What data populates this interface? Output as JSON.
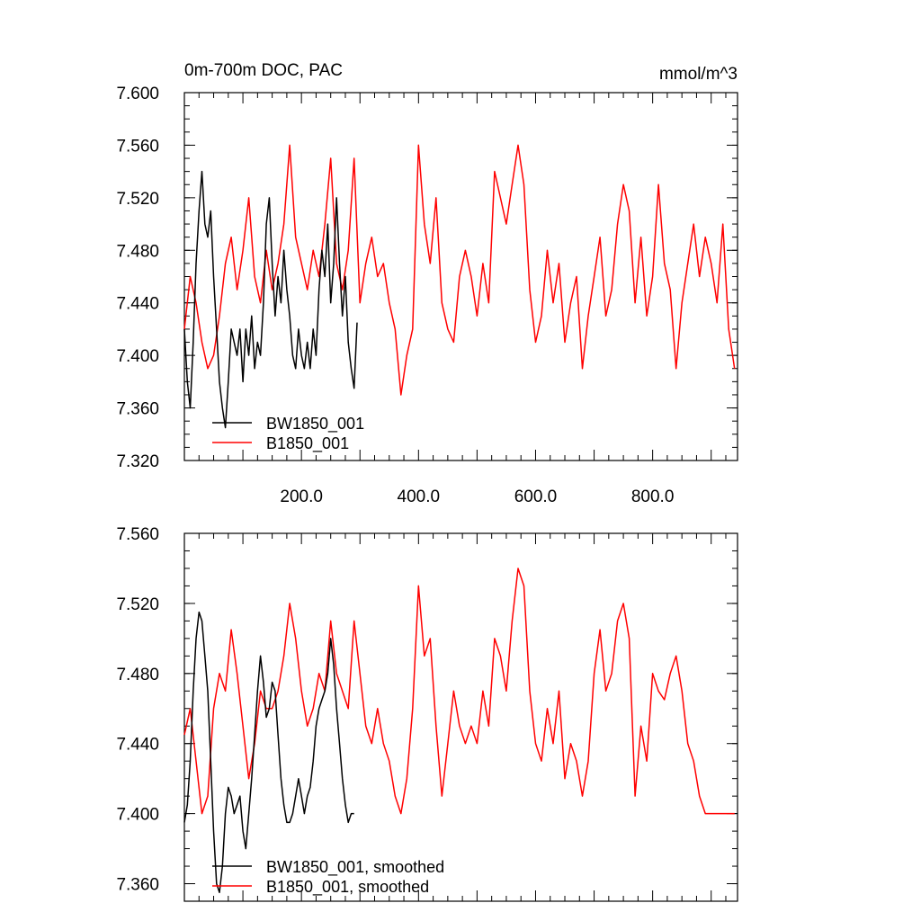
{
  "chart_data": [
    {
      "type": "line",
      "title": "0m-700m DOC, PAC",
      "units": "mmol/m^3",
      "xlim": [
        0,
        945
      ],
      "ylim": [
        7.32,
        7.6
      ],
      "xticks": [
        200,
        400,
        600,
        800
      ],
      "xtick_labels": [
        "200.0",
        "400.0",
        "600.0",
        "800.0"
      ],
      "yticks": [
        7.32,
        7.36,
        7.4,
        7.44,
        7.48,
        7.52,
        7.56,
        7.6
      ],
      "ytick_labels": [
        "7.320",
        "7.360",
        "7.400",
        "7.440",
        "7.480",
        "7.520",
        "7.560",
        "7.600"
      ],
      "grid": false,
      "legend_position": "bottom-left",
      "series": [
        {
          "name": "BW1850_001",
          "color": "#000000",
          "x": [
            0,
            5,
            10,
            15,
            20,
            25,
            30,
            35,
            40,
            45,
            50,
            55,
            60,
            65,
            70,
            75,
            80,
            85,
            90,
            95,
            100,
            105,
            110,
            115,
            120,
            125,
            130,
            135,
            140,
            145,
            150,
            155,
            160,
            165,
            170,
            175,
            180,
            185,
            190,
            195,
            200,
            205,
            210,
            215,
            220,
            225,
            230,
            235,
            240,
            245,
            250,
            255,
            260,
            265,
            270,
            275,
            280,
            285,
            290,
            295
          ],
          "values": [
            7.42,
            7.38,
            7.36,
            7.41,
            7.47,
            7.51,
            7.54,
            7.5,
            7.49,
            7.51,
            7.46,
            7.42,
            7.38,
            7.36,
            7.345,
            7.38,
            7.42,
            7.41,
            7.4,
            7.42,
            7.38,
            7.42,
            7.4,
            7.43,
            7.39,
            7.41,
            7.4,
            7.44,
            7.5,
            7.52,
            7.47,
            7.43,
            7.46,
            7.44,
            7.48,
            7.45,
            7.43,
            7.4,
            7.39,
            7.42,
            7.4,
            7.39,
            7.41,
            7.39,
            7.42,
            7.4,
            7.45,
            7.48,
            7.46,
            7.5,
            7.44,
            7.47,
            7.52,
            7.47,
            7.43,
            7.46,
            7.41,
            7.39,
            7.375,
            7.425
          ]
        },
        {
          "name": "B1850_001",
          "color": "#ff0000",
          "x": [
            0,
            10,
            20,
            30,
            40,
            50,
            60,
            70,
            80,
            90,
            100,
            110,
            120,
            130,
            140,
            150,
            160,
            170,
            180,
            190,
            200,
            210,
            220,
            230,
            240,
            250,
            260,
            270,
            280,
            290,
            300,
            310,
            320,
            330,
            340,
            350,
            360,
            370,
            380,
            390,
            400,
            410,
            420,
            430,
            440,
            450,
            460,
            470,
            480,
            490,
            500,
            510,
            520,
            530,
            540,
            550,
            560,
            570,
            580,
            590,
            600,
            610,
            620,
            630,
            640,
            650,
            660,
            670,
            680,
            690,
            700,
            710,
            720,
            730,
            740,
            750,
            760,
            770,
            780,
            790,
            800,
            810,
            820,
            830,
            840,
            850,
            860,
            870,
            880,
            890,
            900,
            910,
            920,
            930,
            940
          ],
          "values": [
            7.42,
            7.46,
            7.44,
            7.41,
            7.39,
            7.4,
            7.43,
            7.47,
            7.49,
            7.45,
            7.48,
            7.52,
            7.46,
            7.44,
            7.48,
            7.45,
            7.47,
            7.5,
            7.56,
            7.49,
            7.47,
            7.45,
            7.48,
            7.46,
            7.5,
            7.55,
            7.47,
            7.45,
            7.48,
            7.55,
            7.44,
            7.47,
            7.49,
            7.46,
            7.47,
            7.44,
            7.42,
            7.37,
            7.4,
            7.42,
            7.56,
            7.5,
            7.47,
            7.52,
            7.44,
            7.42,
            7.41,
            7.46,
            7.48,
            7.46,
            7.43,
            7.47,
            7.44,
            7.54,
            7.52,
            7.5,
            7.53,
            7.56,
            7.53,
            7.45,
            7.41,
            7.43,
            7.48,
            7.44,
            7.47,
            7.41,
            7.44,
            7.46,
            7.39,
            7.43,
            7.46,
            7.49,
            7.43,
            7.45,
            7.5,
            7.53,
            7.51,
            7.44,
            7.49,
            7.43,
            7.46,
            7.53,
            7.47,
            7.45,
            7.39,
            7.44,
            7.47,
            7.5,
            7.46,
            7.49,
            7.47,
            7.44,
            7.5,
            7.42,
            7.39
          ]
        }
      ]
    },
    {
      "type": "line",
      "xlim": [
        0,
        945
      ],
      "ylim": [
        7.35,
        7.56
      ],
      "yticks": [
        7.36,
        7.4,
        7.44,
        7.48,
        7.52,
        7.56
      ],
      "ytick_labels": [
        "7.360",
        "7.400",
        "7.440",
        "7.480",
        "7.520",
        "7.560"
      ],
      "grid": false,
      "legend_position": "bottom-left",
      "series": [
        {
          "name": "BW1850_001, smoothed",
          "color": "#000000",
          "x": [
            0,
            5,
            10,
            15,
            20,
            25,
            30,
            35,
            40,
            45,
            50,
            55,
            60,
            65,
            70,
            75,
            80,
            85,
            90,
            95,
            100,
            105,
            110,
            115,
            120,
            125,
            130,
            135,
            140,
            145,
            150,
            155,
            160,
            165,
            170,
            175,
            180,
            185,
            190,
            195,
            200,
            205,
            210,
            215,
            220,
            225,
            230,
            235,
            240,
            245,
            250,
            255,
            260,
            265,
            270,
            275,
            280,
            285,
            290
          ],
          "values": [
            7.395,
            7.405,
            7.43,
            7.47,
            7.5,
            7.515,
            7.51,
            7.49,
            7.47,
            7.43,
            7.39,
            7.36,
            7.355,
            7.37,
            7.4,
            7.415,
            7.41,
            7.4,
            7.405,
            7.41,
            7.39,
            7.38,
            7.4,
            7.42,
            7.445,
            7.47,
            7.49,
            7.475,
            7.455,
            7.46,
            7.475,
            7.47,
            7.445,
            7.42,
            7.405,
            7.395,
            7.395,
            7.4,
            7.41,
            7.42,
            7.41,
            7.4,
            7.41,
            7.415,
            7.43,
            7.45,
            7.46,
            7.465,
            7.47,
            7.48,
            7.5,
            7.485,
            7.46,
            7.44,
            7.42,
            7.405,
            7.395,
            7.4,
            7.4
          ]
        },
        {
          "name": "B1850_001, smoothed",
          "color": "#ff0000",
          "x": [
            0,
            10,
            20,
            30,
            40,
            50,
            60,
            70,
            80,
            90,
            100,
            110,
            120,
            130,
            140,
            150,
            160,
            170,
            180,
            190,
            200,
            210,
            220,
            230,
            240,
            250,
            260,
            270,
            280,
            290,
            300,
            310,
            320,
            330,
            340,
            350,
            360,
            370,
            380,
            390,
            400,
            410,
            420,
            430,
            440,
            450,
            460,
            470,
            480,
            490,
            500,
            510,
            520,
            530,
            540,
            550,
            560,
            570,
            580,
            590,
            600,
            610,
            620,
            630,
            640,
            650,
            660,
            670,
            680,
            690,
            700,
            710,
            720,
            730,
            740,
            750,
            760,
            770,
            780,
            790,
            800,
            810,
            820,
            830,
            840,
            850,
            860,
            870,
            880,
            890,
            900,
            910,
            920,
            930,
            940
          ],
          "values": [
            7.445,
            7.46,
            7.43,
            7.4,
            7.41,
            7.46,
            7.48,
            7.47,
            7.505,
            7.48,
            7.45,
            7.42,
            7.44,
            7.47,
            7.46,
            7.46,
            7.47,
            7.49,
            7.52,
            7.5,
            7.47,
            7.45,
            7.46,
            7.48,
            7.47,
            7.51,
            7.48,
            7.47,
            7.46,
            7.51,
            7.48,
            7.45,
            7.44,
            7.46,
            7.44,
            7.43,
            7.41,
            7.4,
            7.42,
            7.46,
            7.53,
            7.49,
            7.5,
            7.45,
            7.41,
            7.44,
            7.47,
            7.45,
            7.44,
            7.45,
            7.44,
            7.47,
            7.45,
            7.5,
            7.49,
            7.47,
            7.51,
            7.54,
            7.53,
            7.47,
            7.44,
            7.43,
            7.46,
            7.44,
            7.47,
            7.42,
            7.44,
            7.43,
            7.41,
            7.43,
            7.48,
            7.505,
            7.47,
            7.48,
            7.51,
            7.52,
            7.5,
            7.41,
            7.45,
            7.43,
            7.48,
            7.47,
            7.465,
            7.48,
            7.49,
            7.47,
            7.44,
            7.43,
            7.41,
            7.4,
            7.4,
            7.4,
            7.4,
            7.4,
            7.4
          ]
        }
      ]
    }
  ]
}
